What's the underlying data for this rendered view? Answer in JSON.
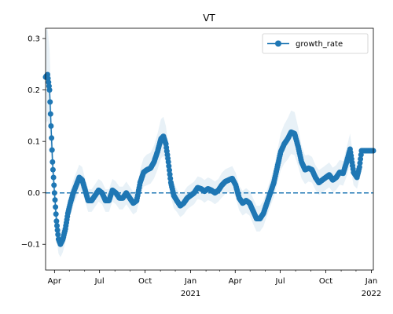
{
  "chart_data": {
    "type": "scatter",
    "title": "VT",
    "xlabel": "",
    "ylabel": "",
    "x_range": [
      "2020-03-14",
      "2022-01-05"
    ],
    "ylim": [
      -0.15,
      0.32
    ],
    "grid": false,
    "legend_placement": "top-right",
    "colors": {
      "series": "#1f77b4",
      "band": "#1f77b4",
      "zero_line": "#1f77b4"
    },
    "y_ticks": [
      {
        "value": -0.1,
        "label": "−0.1"
      },
      {
        "value": 0.0,
        "label": "0.0"
      },
      {
        "value": 0.1,
        "label": "0.1"
      },
      {
        "value": 0.2,
        "label": "0.2"
      },
      {
        "value": 0.3,
        "label": "0.3"
      }
    ],
    "x_ticks_major": [
      {
        "date": "2020-04-01",
        "label": "Apr"
      },
      {
        "date": "2020-07-01",
        "label": "Jul"
      },
      {
        "date": "2020-10-01",
        "label": "Oct"
      },
      {
        "date": "2021-01-01",
        "label": "Jan",
        "sublabel": "2021"
      },
      {
        "date": "2021-04-01",
        "label": "Apr"
      },
      {
        "date": "2021-07-01",
        "label": "Jul"
      },
      {
        "date": "2021-10-01",
        "label": "Oct"
      },
      {
        "date": "2022-01-01",
        "label": "Jan",
        "sublabel": "2022"
      }
    ],
    "x_ticks_minor": [
      "2020-05-01",
      "2020-06-01",
      "2020-08-01",
      "2020-09-01",
      "2020-11-01",
      "2020-12-01",
      "2021-02-01",
      "2021-03-01",
      "2021-05-01",
      "2021-06-01",
      "2021-08-01",
      "2021-09-01",
      "2021-11-01",
      "2021-12-01"
    ],
    "reference_line": {
      "y": 0.0,
      "style": "dashed"
    },
    "series": [
      {
        "name": "growth_rate",
        "marker": "circle",
        "points": [
          {
            "date": "2020-03-14",
            "value": 0.225,
            "band": 0.09
          },
          {
            "date": "2020-03-18",
            "value": 0.23,
            "band": 0.09
          },
          {
            "date": "2020-03-22",
            "value": 0.2,
            "band": 0.08
          },
          {
            "date": "2020-03-25",
            "value": 0.13,
            "band": 0.06
          },
          {
            "date": "2020-03-28",
            "value": 0.06,
            "band": 0.045
          },
          {
            "date": "2020-04-01",
            "value": 0.0,
            "band": 0.035
          },
          {
            "date": "2020-04-05",
            "value": -0.055,
            "band": 0.03
          },
          {
            "date": "2020-04-09",
            "value": -0.09,
            "band": 0.028
          },
          {
            "date": "2020-04-13",
            "value": -0.1,
            "band": 0.025
          },
          {
            "date": "2020-04-18",
            "value": -0.09,
            "band": 0.025
          },
          {
            "date": "2020-04-23",
            "value": -0.07,
            "band": 0.025
          },
          {
            "date": "2020-04-28",
            "value": -0.04,
            "band": 0.025
          },
          {
            "date": "2020-05-03",
            "value": -0.02,
            "band": 0.025
          },
          {
            "date": "2020-05-09",
            "value": 0.0,
            "band": 0.025
          },
          {
            "date": "2020-05-15",
            "value": 0.015,
            "band": 0.025
          },
          {
            "date": "2020-05-21",
            "value": 0.03,
            "band": 0.025
          },
          {
            "date": "2020-05-27",
            "value": 0.025,
            "band": 0.025
          },
          {
            "date": "2020-06-02",
            "value": 0.005,
            "band": 0.022
          },
          {
            "date": "2020-06-08",
            "value": -0.015,
            "band": 0.022
          },
          {
            "date": "2020-06-15",
            "value": -0.015,
            "band": 0.022
          },
          {
            "date": "2020-06-22",
            "value": -0.005,
            "band": 0.022
          },
          {
            "date": "2020-06-29",
            "value": 0.005,
            "band": 0.022
          },
          {
            "date": "2020-07-06",
            "value": 0.0,
            "band": 0.022
          },
          {
            "date": "2020-07-13",
            "value": -0.015,
            "band": 0.022
          },
          {
            "date": "2020-07-20",
            "value": -0.015,
            "band": 0.022
          },
          {
            "date": "2020-07-27",
            "value": 0.005,
            "band": 0.022
          },
          {
            "date": "2020-08-03",
            "value": 0.0,
            "band": 0.022
          },
          {
            "date": "2020-08-10",
            "value": -0.01,
            "band": 0.022
          },
          {
            "date": "2020-08-17",
            "value": -0.01,
            "band": 0.022
          },
          {
            "date": "2020-08-24",
            "value": 0.0,
            "band": 0.022
          },
          {
            "date": "2020-08-31",
            "value": -0.01,
            "band": 0.022
          },
          {
            "date": "2020-09-07",
            "value": -0.02,
            "band": 0.022
          },
          {
            "date": "2020-09-14",
            "value": -0.015,
            "band": 0.022
          },
          {
            "date": "2020-09-21",
            "value": 0.02,
            "band": 0.025
          },
          {
            "date": "2020-09-28",
            "value": 0.04,
            "band": 0.028
          },
          {
            "date": "2020-10-05",
            "value": 0.045,
            "band": 0.03
          },
          {
            "date": "2020-10-12",
            "value": 0.048,
            "band": 0.03
          },
          {
            "date": "2020-10-19",
            "value": 0.06,
            "band": 0.032
          },
          {
            "date": "2020-10-26",
            "value": 0.08,
            "band": 0.035
          },
          {
            "date": "2020-11-02",
            "value": 0.105,
            "band": 0.038
          },
          {
            "date": "2020-11-07",
            "value": 0.11,
            "band": 0.038
          },
          {
            "date": "2020-11-12",
            "value": 0.095,
            "band": 0.035
          },
          {
            "date": "2020-11-17",
            "value": 0.06,
            "band": 0.032
          },
          {
            "date": "2020-11-22",
            "value": 0.02,
            "band": 0.028
          },
          {
            "date": "2020-11-28",
            "value": -0.005,
            "band": 0.025
          },
          {
            "date": "2020-12-04",
            "value": -0.015,
            "band": 0.022
          },
          {
            "date": "2020-12-11",
            "value": -0.025,
            "band": 0.022
          },
          {
            "date": "2020-12-18",
            "value": -0.02,
            "band": 0.022
          },
          {
            "date": "2020-12-25",
            "value": -0.01,
            "band": 0.022
          },
          {
            "date": "2021-01-01",
            "value": -0.005,
            "band": 0.022
          },
          {
            "date": "2021-01-08",
            "value": 0.0,
            "band": 0.022
          },
          {
            "date": "2021-01-15",
            "value": 0.01,
            "band": 0.022
          },
          {
            "date": "2021-01-22",
            "value": 0.008,
            "band": 0.022
          },
          {
            "date": "2021-01-29",
            "value": 0.003,
            "band": 0.022
          },
          {
            "date": "2021-02-05",
            "value": 0.008,
            "band": 0.022
          },
          {
            "date": "2021-02-12",
            "value": 0.005,
            "band": 0.022
          },
          {
            "date": "2021-02-19",
            "value": 0.0,
            "band": 0.022
          },
          {
            "date": "2021-02-26",
            "value": 0.005,
            "band": 0.022
          },
          {
            "date": "2021-03-05",
            "value": 0.015,
            "band": 0.024
          },
          {
            "date": "2021-03-12",
            "value": 0.022,
            "band": 0.024
          },
          {
            "date": "2021-03-19",
            "value": 0.025,
            "band": 0.024
          },
          {
            "date": "2021-03-26",
            "value": 0.028,
            "band": 0.024
          },
          {
            "date": "2021-04-02",
            "value": 0.015,
            "band": 0.024
          },
          {
            "date": "2021-04-09",
            "value": -0.01,
            "band": 0.024
          },
          {
            "date": "2021-04-16",
            "value": -0.02,
            "band": 0.024
          },
          {
            "date": "2021-04-23",
            "value": -0.015,
            "band": 0.024
          },
          {
            "date": "2021-04-30",
            "value": -0.02,
            "band": 0.024
          },
          {
            "date": "2021-05-07",
            "value": -0.035,
            "band": 0.025
          },
          {
            "date": "2021-05-14",
            "value": -0.05,
            "band": 0.025
          },
          {
            "date": "2021-05-21",
            "value": -0.05,
            "band": 0.025
          },
          {
            "date": "2021-05-28",
            "value": -0.04,
            "band": 0.025
          },
          {
            "date": "2021-06-04",
            "value": -0.02,
            "band": 0.025
          },
          {
            "date": "2021-06-11",
            "value": 0.0,
            "band": 0.026
          },
          {
            "date": "2021-06-18",
            "value": 0.02,
            "band": 0.028
          },
          {
            "date": "2021-06-25",
            "value": 0.05,
            "band": 0.032
          },
          {
            "date": "2021-07-02",
            "value": 0.08,
            "band": 0.036
          },
          {
            "date": "2021-07-09",
            "value": 0.095,
            "band": 0.038
          },
          {
            "date": "2021-07-16",
            "value": 0.105,
            "band": 0.04
          },
          {
            "date": "2021-07-23",
            "value": 0.118,
            "band": 0.042
          },
          {
            "date": "2021-07-30",
            "value": 0.115,
            "band": 0.042
          },
          {
            "date": "2021-08-06",
            "value": 0.09,
            "band": 0.038
          },
          {
            "date": "2021-08-13",
            "value": 0.06,
            "band": 0.032
          },
          {
            "date": "2021-08-20",
            "value": 0.045,
            "band": 0.028
          },
          {
            "date": "2021-08-27",
            "value": 0.048,
            "band": 0.026
          },
          {
            "date": "2021-09-03",
            "value": 0.045,
            "band": 0.025
          },
          {
            "date": "2021-09-10",
            "value": 0.03,
            "band": 0.024
          },
          {
            "date": "2021-09-17",
            "value": 0.02,
            "band": 0.024
          },
          {
            "date": "2021-09-24",
            "value": 0.025,
            "band": 0.024
          },
          {
            "date": "2021-10-01",
            "value": 0.03,
            "band": 0.024
          },
          {
            "date": "2021-10-08",
            "value": 0.035,
            "band": 0.024
          },
          {
            "date": "2021-10-15",
            "value": 0.025,
            "band": 0.024
          },
          {
            "date": "2021-10-22",
            "value": 0.03,
            "band": 0.024
          },
          {
            "date": "2021-10-29",
            "value": 0.04,
            "band": 0.024
          },
          {
            "date": "2021-11-05",
            "value": 0.038,
            "band": 0.024
          },
          {
            "date": "2021-11-12",
            "value": 0.06,
            "band": 0.028
          },
          {
            "date": "2021-11-19",
            "value": 0.085,
            "band": 0.03
          },
          {
            "date": "2021-11-26",
            "value": 0.04,
            "band": 0.025
          },
          {
            "date": "2021-12-03",
            "value": 0.03,
            "band": 0.022
          },
          {
            "date": "2021-12-08",
            "value": 0.05,
            "band": 0.022
          },
          {
            "date": "2021-12-12",
            "value": 0.082,
            "band": 0.0
          },
          {
            "date": "2021-12-19",
            "value": 0.082,
            "band": 0.0
          },
          {
            "date": "2021-12-26",
            "value": 0.082,
            "band": 0.0
          },
          {
            "date": "2022-01-02",
            "value": 0.082,
            "band": 0.0
          },
          {
            "date": "2022-01-05",
            "value": 0.082,
            "band": 0.0
          }
        ]
      }
    ]
  }
}
